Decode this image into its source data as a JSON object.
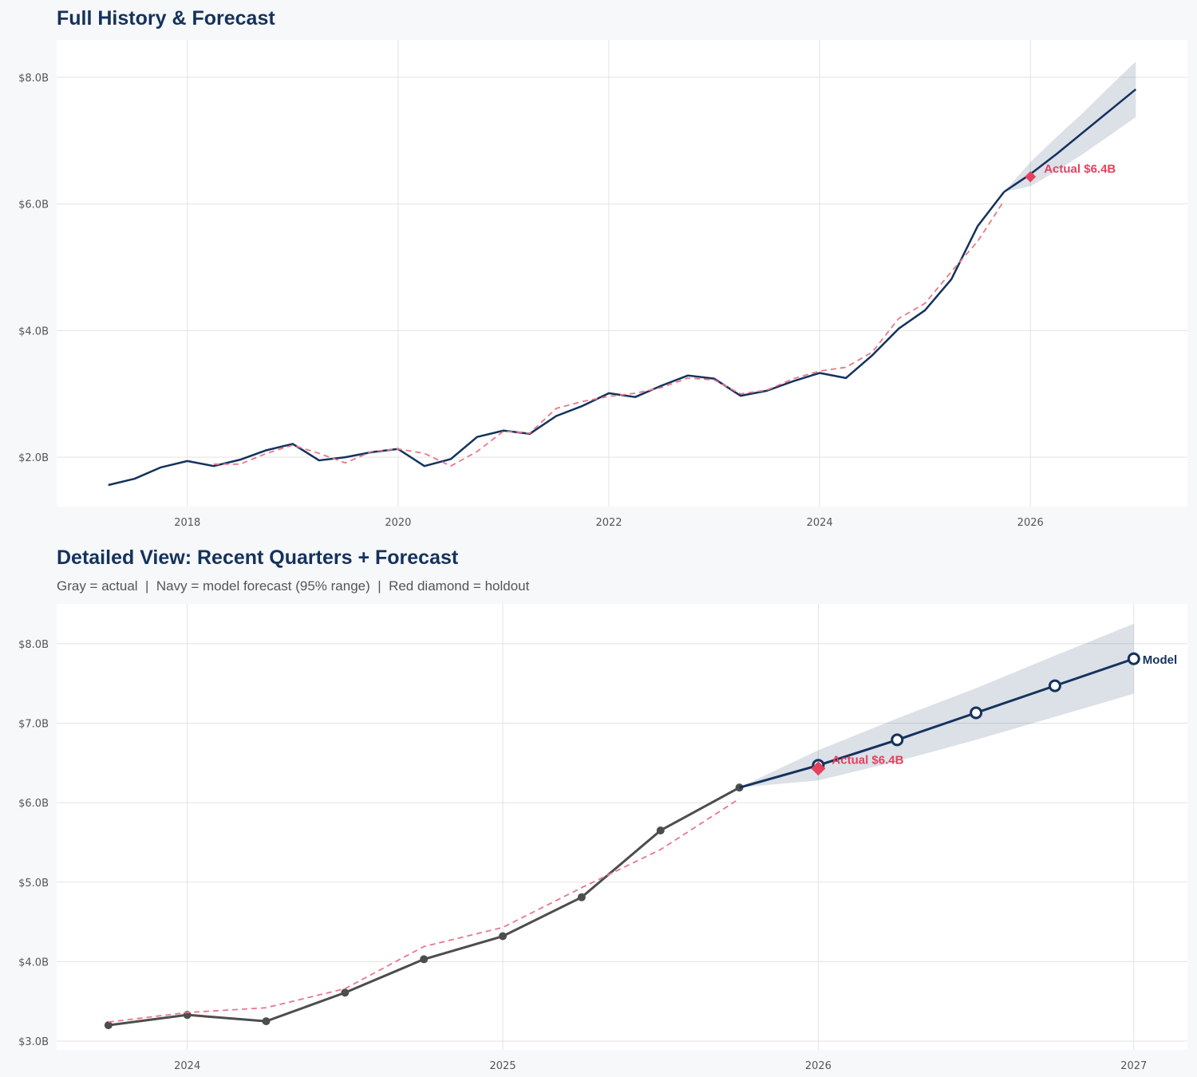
{
  "chart_data": [
    {
      "type": "line",
      "title": "Full History & Forecast",
      "xlim": [
        2016.76,
        2027.49
      ],
      "ylim": [
        1.22,
        8.59
      ],
      "grid": true,
      "x_ticks": [
        2018,
        2020,
        2022,
        2024,
        2026
      ],
      "x_tick_labels": [
        "2018",
        "2020",
        "2022",
        "2024",
        "2026"
      ],
      "y_ticks": [
        2,
        4,
        6,
        8
      ],
      "y_tick_labels": [
        "$2.0B",
        "$4.0B",
        "$6.0B",
        "$8.0B"
      ],
      "series": [
        {
          "role": "actual",
          "color": "#14325c",
          "style": "solid",
          "x": [
            2017.25,
            2017.5,
            2017.75,
            2018,
            2018.25,
            2018.5,
            2018.75,
            2019,
            2019.25,
            2019.5,
            2019.75,
            2020,
            2020.25,
            2020.5,
            2020.75,
            2021,
            2021.25,
            2021.5,
            2021.75,
            2022,
            2022.25,
            2022.5,
            2022.75,
            2023,
            2023.25,
            2023.5,
            2023.75,
            2024,
            2024.25,
            2024.5,
            2024.75,
            2025,
            2025.25,
            2025.5,
            2025.75
          ],
          "y": [
            1.56,
            1.66,
            1.84,
            1.94,
            1.86,
            1.96,
            2.11,
            2.21,
            1.95,
            2.0,
            2.08,
            2.13,
            1.86,
            1.97,
            2.32,
            2.42,
            2.37,
            2.65,
            2.81,
            3.01,
            2.95,
            3.13,
            3.29,
            3.24,
            2.97,
            3.05,
            3.2,
            3.33,
            3.25,
            3.61,
            4.03,
            4.32,
            4.81,
            5.65,
            6.19
          ]
        },
        {
          "role": "fitted",
          "color": "#e8788a",
          "style": "dashed",
          "x": [
            2018.25,
            2018.5,
            2018.75,
            2019,
            2019.25,
            2019.5,
            2019.75,
            2020,
            2020.25,
            2020.5,
            2020.75,
            2021,
            2021.25,
            2021.5,
            2021.75,
            2022,
            2022.25,
            2022.5,
            2022.75,
            2023,
            2023.25,
            2023.5,
            2023.75,
            2024,
            2024.25,
            2024.5,
            2024.75,
            2025,
            2025.25,
            2025.5,
            2025.75
          ],
          "y": [
            1.89,
            1.89,
            2.06,
            2.19,
            2.06,
            1.91,
            2.09,
            2.13,
            2.06,
            1.86,
            2.09,
            2.41,
            2.38,
            2.77,
            2.88,
            2.96,
            3.01,
            3.1,
            3.25,
            3.22,
            3.0,
            3.06,
            3.24,
            3.36,
            3.42,
            3.66,
            4.19,
            4.43,
            4.93,
            5.41,
            6.05
          ]
        },
        {
          "role": "forecast",
          "color": "#14325c",
          "style": "solid",
          "x": [
            2025.75,
            2026,
            2026.25,
            2026.5,
            2026.75,
            2027
          ],
          "y": [
            6.19,
            6.47,
            6.79,
            7.13,
            7.47,
            7.81
          ]
        }
      ],
      "band": {
        "label": "95% range",
        "color": "#14325c",
        "x": [
          2025.75,
          2026,
          2026.25,
          2026.5,
          2026.75,
          2027
        ],
        "lower": [
          6.19,
          6.28,
          6.52,
          6.79,
          7.08,
          7.37
        ],
        "upper": [
          6.19,
          6.66,
          7.06,
          7.44,
          7.85,
          8.25
        ]
      },
      "holdout": {
        "x": 2026,
        "y": 6.43,
        "color": "#e5405e",
        "label": "Actual $6.4B"
      }
    },
    {
      "type": "line",
      "title": "Detailed View: Recent Quarters + Forecast",
      "subtitle": "Gray = actual  |  Navy = model forecast (95% range)  |  Red diamond = holdout",
      "xlim": [
        2023.586,
        2027.17
      ],
      "ylim": [
        2.89,
        8.5
      ],
      "grid": true,
      "x_ticks": [
        2024,
        2025,
        2026,
        2027
      ],
      "x_tick_labels": [
        "2024",
        "2025",
        "2026",
        "2027"
      ],
      "y_ticks": [
        3,
        4,
        5,
        6,
        7,
        8
      ],
      "y_tick_labels": [
        "$3.0B",
        "$4.0B",
        "$5.0B",
        "$6.0B",
        "$7.0B",
        "$8.0B"
      ],
      "series": [
        {
          "role": "actual",
          "color": "#4d4d4d",
          "style": "solid-markers",
          "x": [
            2023.75,
            2024,
            2024.25,
            2024.5,
            2024.75,
            2025,
            2025.25,
            2025.5,
            2025.75
          ],
          "y": [
            3.2,
            3.33,
            3.25,
            3.61,
            4.03,
            4.32,
            4.81,
            5.65,
            6.19
          ]
        },
        {
          "role": "fitted",
          "color": "#e8788a",
          "style": "dashed",
          "x": [
            2023.75,
            2024,
            2024.25,
            2024.5,
            2024.75,
            2025,
            2025.25,
            2025.5,
            2025.75
          ],
          "y": [
            3.24,
            3.36,
            3.42,
            3.66,
            4.19,
            4.43,
            4.93,
            5.41,
            6.05
          ]
        },
        {
          "role": "forecast",
          "name": "Model",
          "color": "#14325c",
          "style": "solid-open-markers",
          "x": [
            2025.75,
            2026,
            2026.25,
            2026.5,
            2026.75,
            2027
          ],
          "y": [
            6.19,
            6.47,
            6.79,
            7.13,
            7.47,
            7.81
          ]
        }
      ],
      "band": {
        "label": "95% range",
        "color": "#14325c",
        "x": [
          2025.75,
          2026,
          2026.25,
          2026.5,
          2026.75,
          2027
        ],
        "lower": [
          6.19,
          6.28,
          6.52,
          6.79,
          7.08,
          7.37
        ],
        "upper": [
          6.19,
          6.66,
          7.06,
          7.44,
          7.85,
          8.25
        ]
      },
      "holdout": {
        "x": 2026,
        "y": 6.43,
        "color": "#e5405e",
        "label": "Actual $6.4B"
      }
    }
  ]
}
